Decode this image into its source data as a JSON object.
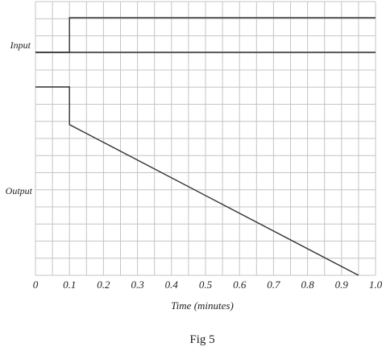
{
  "chart_data": {
    "type": "line",
    "caption": "Fig 5",
    "xlabel": "Time (minutes)",
    "xlim": [
      0,
      1.0
    ],
    "xticks": [
      "0",
      "0.1",
      "0.2",
      "0.3",
      "0.4",
      "0.5",
      "0.6",
      "0.7",
      "0.8",
      "0.9",
      "1.0"
    ],
    "grid": true,
    "series": [
      {
        "name": "Input",
        "points": [
          [
            0,
            0
          ],
          [
            0.1,
            0
          ],
          [
            0.1,
            1
          ],
          [
            1.0,
            1
          ]
        ]
      },
      {
        "name": "Output",
        "points": [
          [
            0,
            1.0
          ],
          [
            0.1,
            1.0
          ],
          [
            0.1,
            0.8
          ],
          [
            0.95,
            0
          ]
        ]
      }
    ]
  }
}
